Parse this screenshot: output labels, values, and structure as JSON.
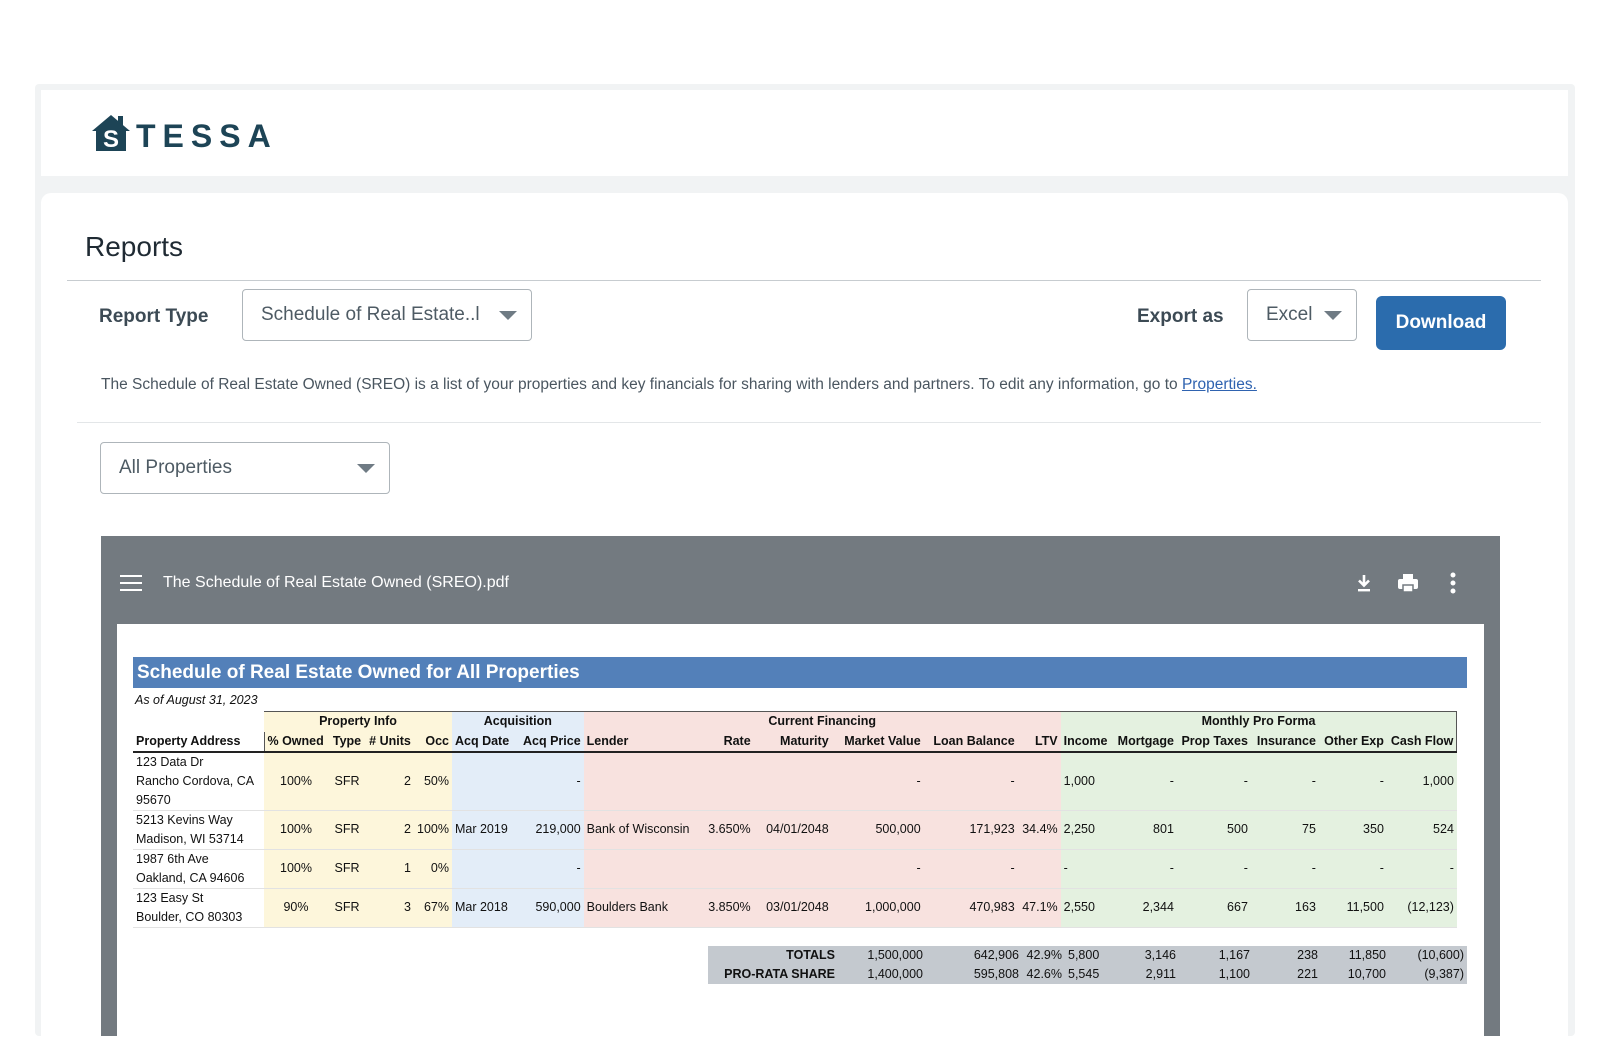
{
  "brand": {
    "name": "TESSA",
    "logo_letter": "S",
    "color": "#1d4456"
  },
  "page": {
    "title": "Reports"
  },
  "controls": {
    "report_type_label": "Report Type",
    "report_type_value": "Schedule of Real Estate..l",
    "export_label": "Export as",
    "export_value": "Excel",
    "download_label": "Download",
    "description": "The Schedule of Real Estate Owned (SREO) is a list of your properties and key financials for sharing with lenders and partners. To edit any information, go to ",
    "description_link": "Properties.",
    "property_filter": "All Properties"
  },
  "viewer": {
    "filename": "The Schedule of Real Estate Owned (SREO).pdf",
    "icons": [
      "menu-icon",
      "download-icon",
      "print-icon",
      "more-vertical-icon"
    ]
  },
  "report": {
    "title": "Schedule of Real Estate Owned for All Properties",
    "as_of": "As of August 31, 2023",
    "groups": {
      "property_info": "Property Info",
      "acquisition": "Acquisition",
      "current_financing": "Current Financing",
      "monthly_pro_forma": "Monthly Pro Forma"
    },
    "headers": [
      "Property Address",
      "% Owned",
      "Type",
      "# Units",
      "Occ",
      "Acq Date",
      "Acq Price",
      "Lender",
      "Rate",
      "Maturity",
      "Market Value",
      "Loan Balance",
      "LTV",
      "Income",
      "Mortgage",
      "Prop Taxes",
      "Insurance",
      "Other Exp",
      "Cash Flow"
    ],
    "rows": [
      {
        "addr": [
          "123 Data Dr",
          "Rancho Cordova, CA",
          "95670"
        ],
        "owned": "100%",
        "type": "SFR",
        "units": "2",
        "occ": "50%",
        "acq_date": "",
        "acq_price": "-",
        "lender": "",
        "rate": "",
        "maturity": "",
        "market_value": "-",
        "loan_balance": "-",
        "ltv": "",
        "income": "1,000",
        "mortgage": "-",
        "prop_taxes": "-",
        "insurance": "-",
        "other_exp": "-",
        "cash_flow": "1,000"
      },
      {
        "addr": [
          "5213 Kevins Way",
          "Madison, WI 53714"
        ],
        "owned": "100%",
        "type": "SFR",
        "units": "2",
        "occ": "100%",
        "acq_date": "Mar 2019",
        "acq_price": "219,000",
        "lender": "Bank of Wisconsin",
        "rate": "3.650%",
        "maturity": "04/01/2048",
        "market_value": "500,000",
        "loan_balance": "171,923",
        "ltv": "34.4%",
        "income": "2,250",
        "mortgage": "801",
        "prop_taxes": "500",
        "insurance": "75",
        "other_exp": "350",
        "cash_flow": "524"
      },
      {
        "addr": [
          "1987 6th Ave",
          "Oakland, CA 94606"
        ],
        "owned": "100%",
        "type": "SFR",
        "units": "1",
        "occ": "0%",
        "acq_date": "",
        "acq_price": "-",
        "lender": "",
        "rate": "",
        "maturity": "",
        "market_value": "-",
        "loan_balance": "-",
        "ltv": "",
        "income": "-",
        "mortgage": "-",
        "prop_taxes": "-",
        "insurance": "-",
        "other_exp": "-",
        "cash_flow": "-"
      },
      {
        "addr": [
          "123 Easy St",
          "Boulder, CO 80303"
        ],
        "owned": "90%",
        "type": "SFR",
        "units": "3",
        "occ": "67%",
        "acq_date": "Mar 2018",
        "acq_price": "590,000",
        "lender": "Boulders Bank",
        "rate": "3.850%",
        "maturity": "03/01/2048",
        "market_value": "1,000,000",
        "loan_balance": "470,983",
        "ltv": "47.1%",
        "income": "2,550",
        "mortgage": "2,344",
        "prop_taxes": "667",
        "insurance": "163",
        "other_exp": "11,500",
        "cash_flow": "(12,123)"
      }
    ],
    "totals": [
      {
        "label": "TOTALS",
        "market_value": "1,500,000",
        "loan_balance": "642,906",
        "ltv": "42.9%",
        "income": "5,800",
        "mortgage": "3,146",
        "prop_taxes": "1,167",
        "insurance": "238",
        "other_exp": "11,850",
        "cash_flow": "(10,600)"
      },
      {
        "label": "PRO-RATA SHARE",
        "market_value": "1,400,000",
        "loan_balance": "595,808",
        "ltv": "42.6%",
        "income": "5,545",
        "mortgage": "2,911",
        "prop_taxes": "1,100",
        "insurance": "221",
        "other_exp": "10,700",
        "cash_flow": "(9,387)"
      }
    ]
  },
  "colors": {
    "primary": "#2b6cad",
    "report_title_bar": "#5380b9",
    "viewer_bg": "#737a80",
    "property_info_bg": "#fdf6db",
    "acquisition_bg": "#e3edf8",
    "financing_bg": "#f8e2df",
    "pro_forma_bg": "#e4f1e0"
  }
}
